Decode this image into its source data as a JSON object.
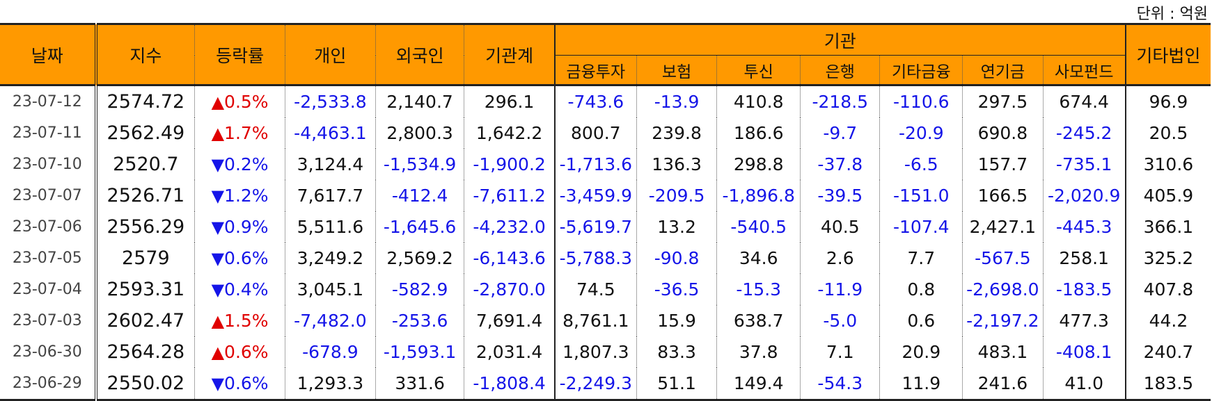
{
  "unit_label": "단위 : 억원",
  "headers": {
    "date": "날짜",
    "index": "지수",
    "change": "등락률",
    "individual": "개인",
    "foreign": "외국인",
    "institution_total": "기관계",
    "institution": "기관",
    "inst_sub": [
      "금융투자",
      "보험",
      "투신",
      "은행",
      "기타금융",
      "연기금",
      "사모펀드"
    ],
    "other_corp": "기타법인"
  },
  "rows": [
    {
      "date": "23-07-12",
      "index": "2574.72",
      "dir": "up",
      "change": "0.5%",
      "individual": "-2,533.8",
      "foreign": "2,140.7",
      "inst_total": "296.1",
      "fin": "-743.6",
      "ins": "-13.9",
      "trust": "410.8",
      "bank": "-218.5",
      "etcfin": "-110.6",
      "pension": "297.5",
      "pef": "674.4",
      "other": "96.9"
    },
    {
      "date": "23-07-11",
      "index": "2562.49",
      "dir": "up",
      "change": "1.7%",
      "individual": "-4,463.1",
      "foreign": "2,800.3",
      "inst_total": "1,642.2",
      "fin": "800.7",
      "ins": "239.8",
      "trust": "186.6",
      "bank": "-9.7",
      "etcfin": "-20.9",
      "pension": "690.8",
      "pef": "-245.2",
      "other": "20.5"
    },
    {
      "date": "23-07-10",
      "index": "2520.7",
      "dir": "down",
      "change": "0.2%",
      "individual": "3,124.4",
      "foreign": "-1,534.9",
      "inst_total": "-1,900.2",
      "fin": "-1,713.6",
      "ins": "136.3",
      "trust": "298.8",
      "bank": "-37.8",
      "etcfin": "-6.5",
      "pension": "157.7",
      "pef": "-735.1",
      "other": "310.6"
    },
    {
      "date": "23-07-07",
      "index": "2526.71",
      "dir": "down",
      "change": "1.2%",
      "individual": "7,617.7",
      "foreign": "-412.4",
      "inst_total": "-7,611.2",
      "fin": "-3,459.9",
      "ins": "-209.5",
      "trust": "-1,896.8",
      "bank": "-39.5",
      "etcfin": "-151.0",
      "pension": "166.5",
      "pef": "-2,020.9",
      "other": "405.9"
    },
    {
      "date": "23-07-06",
      "index": "2556.29",
      "dir": "down",
      "change": "0.9%",
      "individual": "5,511.6",
      "foreign": "-1,645.6",
      "inst_total": "-4,232.0",
      "fin": "-5,619.7",
      "ins": "13.2",
      "trust": "-540.5",
      "bank": "40.5",
      "etcfin": "-107.4",
      "pension": "2,427.1",
      "pef": "-445.3",
      "other": "366.1"
    },
    {
      "date": "23-07-05",
      "index": "2579",
      "dir": "down",
      "change": "0.6%",
      "individual": "3,249.2",
      "foreign": "2,569.2",
      "inst_total": "-6,143.6",
      "fin": "-5,788.3",
      "ins": "-90.8",
      "trust": "34.6",
      "bank": "2.6",
      "etcfin": "7.7",
      "pension": "-567.5",
      "pef": "258.1",
      "other": "325.2"
    },
    {
      "date": "23-07-04",
      "index": "2593.31",
      "dir": "down",
      "change": "0.4%",
      "individual": "3,045.1",
      "foreign": "-582.9",
      "inst_total": "-2,870.0",
      "fin": "74.5",
      "ins": "-36.5",
      "trust": "-15.3",
      "bank": "-11.9",
      "etcfin": "0.8",
      "pension": "-2,698.0",
      "pef": "-183.5",
      "other": "407.8"
    },
    {
      "date": "23-07-03",
      "index": "2602.47",
      "dir": "up",
      "change": "1.5%",
      "individual": "-7,482.0",
      "foreign": "-253.6",
      "inst_total": "7,691.4",
      "fin": "8,761.1",
      "ins": "15.9",
      "trust": "638.7",
      "bank": "-5.0",
      "etcfin": "0.6",
      "pension": "-2,197.2",
      "pef": "477.3",
      "other": "44.2"
    },
    {
      "date": "23-06-30",
      "index": "2564.28",
      "dir": "up",
      "change": "0.6%",
      "individual": "-678.9",
      "foreign": "-1,593.1",
      "inst_total": "2,031.4",
      "fin": "1,807.3",
      "ins": "83.3",
      "trust": "37.8",
      "bank": "7.1",
      "etcfin": "20.9",
      "pension": "483.1",
      "pef": "-408.1",
      "other": "240.7"
    },
    {
      "date": "23-06-29",
      "index": "2550.02",
      "dir": "down",
      "change": "0.6%",
      "individual": "1,293.3",
      "foreign": "331.6",
      "inst_total": "-1,808.4",
      "fin": "-2,249.3",
      "ins": "51.1",
      "trust": "149.4",
      "bank": "-54.3",
      "etcfin": "11.9",
      "pension": "241.6",
      "pef": "41.0",
      "other": "183.5"
    }
  ],
  "symbols": {
    "up": "▲",
    "down": "▼"
  },
  "colors": {
    "header_bg": "#FF9900",
    "negative": "#1515E8",
    "up": "#E00000",
    "down": "#1515E8"
  }
}
